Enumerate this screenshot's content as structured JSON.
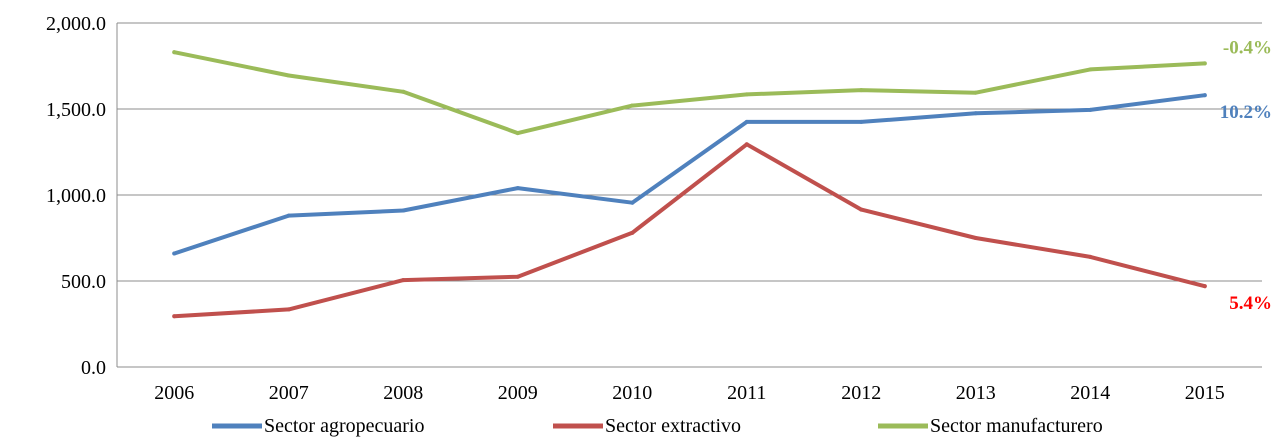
{
  "chart_data": {
    "type": "line",
    "categories": [
      "2006",
      "2007",
      "2008",
      "2009",
      "2010",
      "2011",
      "2012",
      "2013",
      "2014",
      "2015"
    ],
    "ylim": [
      0,
      2000
    ],
    "yticks": [
      0,
      500,
      1000,
      1500,
      2000
    ],
    "ytick_labels": [
      "0.0",
      "500.0",
      "1,000.0",
      "1,500.0",
      "2,000.0"
    ],
    "grid": "horizontal",
    "legend_position": "bottom",
    "series": [
      {
        "name": "Sector agropecuario",
        "color": "#4F81BD",
        "values": [
          660,
          880,
          910,
          1040,
          955,
          1425,
          1425,
          1475,
          1495,
          1580
        ],
        "end_label": "10.2%",
        "end_label_color": "#4F81BD"
      },
      {
        "name": "Sector extractivo",
        "color": "#C0504D",
        "values": [
          295,
          335,
          505,
          525,
          780,
          1295,
          915,
          750,
          640,
          470
        ],
        "end_label": "5.4%",
        "end_label_color": "#FF0000"
      },
      {
        "name": "Sector manufacturero",
        "color": "#9BBB59",
        "values": [
          1830,
          1695,
          1600,
          1360,
          1520,
          1585,
          1610,
          1595,
          1730,
          1765
        ],
        "end_label": "-0.4%",
        "end_label_color": "#9BBB59"
      }
    ]
  }
}
